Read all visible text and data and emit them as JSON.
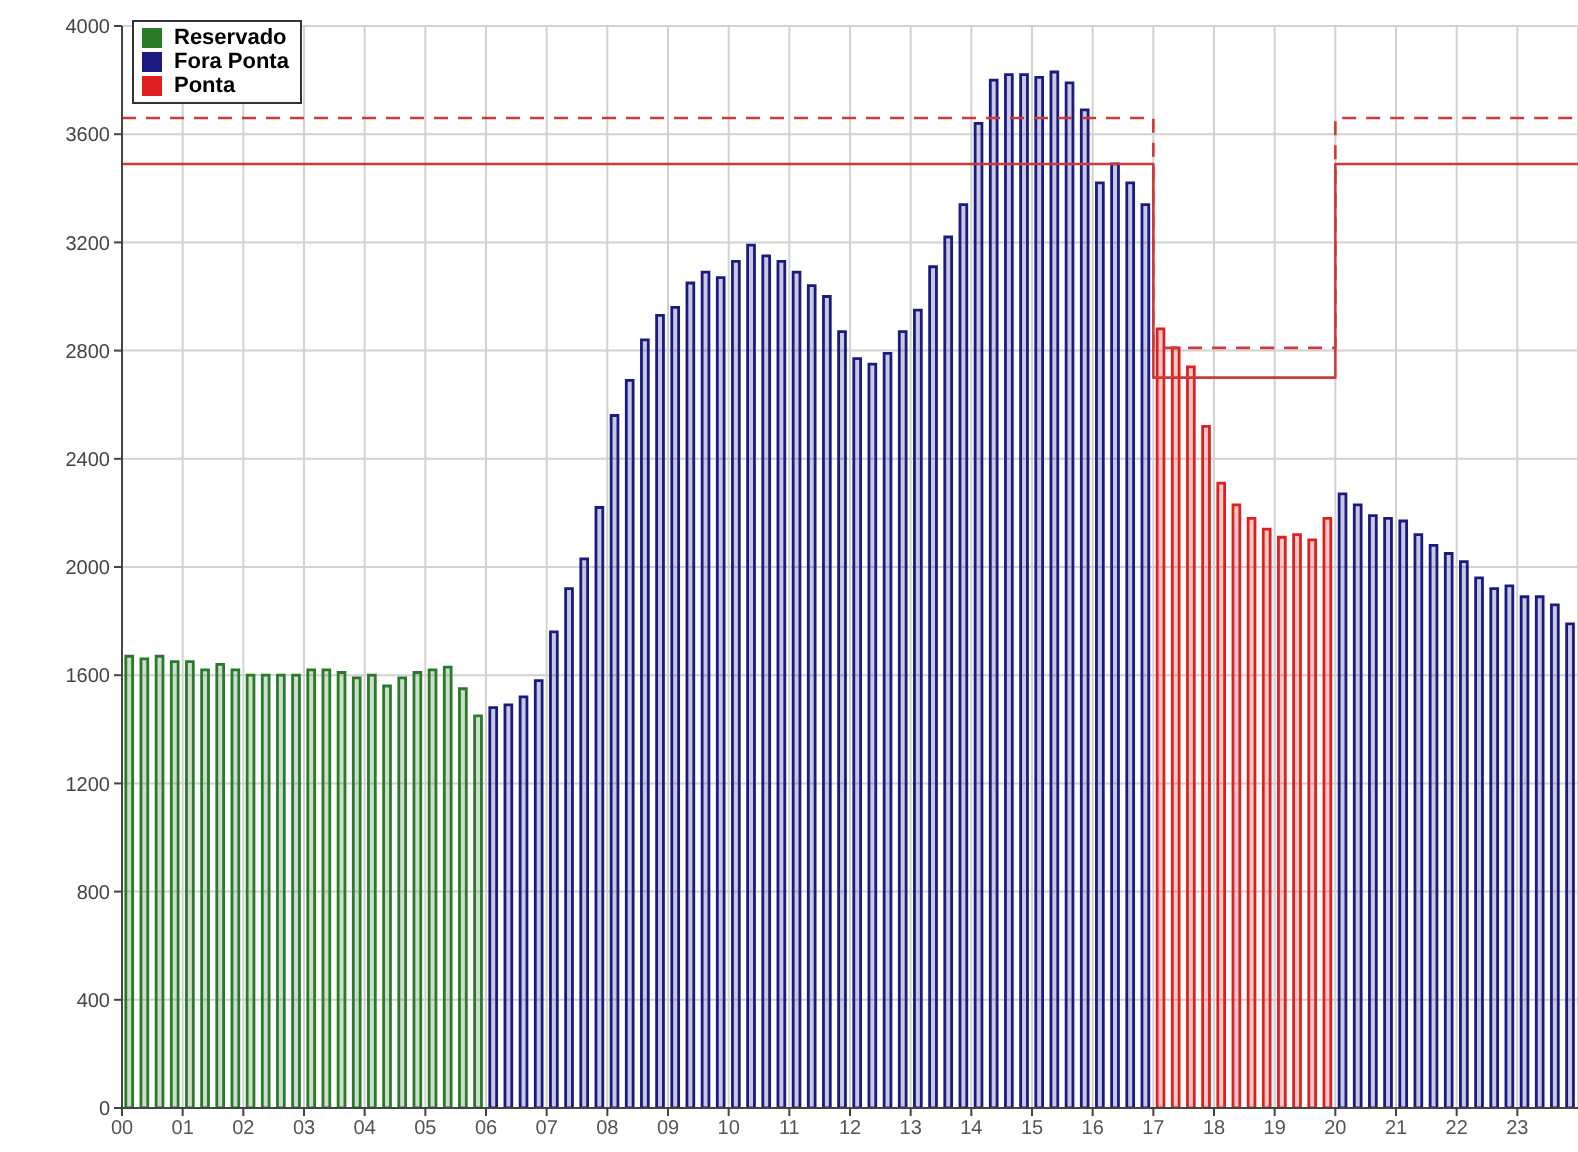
{
  "chart_data": {
    "type": "bar",
    "xlim": [
      0,
      24
    ],
    "xticks": [
      {
        "value": 0,
        "label": "00"
      },
      {
        "value": 1,
        "label": "01"
      },
      {
        "value": 2,
        "label": "02"
      },
      {
        "value": 3,
        "label": "03"
      },
      {
        "value": 4,
        "label": "04"
      },
      {
        "value": 5,
        "label": "05"
      },
      {
        "value": 6,
        "label": "06"
      },
      {
        "value": 7,
        "label": "07"
      },
      {
        "value": 8,
        "label": "08"
      },
      {
        "value": 9,
        "label": "09"
      },
      {
        "value": 10,
        "label": "10"
      },
      {
        "value": 11,
        "label": "11"
      },
      {
        "value": 12,
        "label": "12"
      },
      {
        "value": 13,
        "label": "13"
      },
      {
        "value": 14,
        "label": "14"
      },
      {
        "value": 15,
        "label": "15"
      },
      {
        "value": 16,
        "label": "16"
      },
      {
        "value": 17,
        "label": "17"
      },
      {
        "value": 18,
        "label": "18"
      },
      {
        "value": 19,
        "label": "19"
      },
      {
        "value": 20,
        "label": "20"
      },
      {
        "value": 21,
        "label": "21"
      },
      {
        "value": 22,
        "label": "22"
      },
      {
        "value": 23,
        "label": "23"
      }
    ],
    "ylim": [
      0,
      4000
    ],
    "yticks": [
      0,
      400,
      800,
      1200,
      1600,
      2000,
      2400,
      2800,
      3200,
      3600,
      4000
    ],
    "grid": true,
    "legend": "top left",
    "series": [
      {
        "name": "Reservado",
        "color": "#2a7a2a",
        "x": [
          0.125,
          0.375,
          0.625,
          0.875,
          1.125,
          1.375,
          1.625,
          1.875,
          2.125,
          2.375,
          2.625,
          2.875,
          3.125,
          3.375,
          3.625,
          3.875,
          4.125,
          4.375,
          4.625,
          4.875,
          5.125,
          5.375,
          5.625,
          5.875
        ],
        "values": [
          1670,
          1660,
          1670,
          1650,
          1650,
          1620,
          1640,
          1620,
          1600,
          1600,
          1600,
          1600,
          1620,
          1620,
          1610,
          1590,
          1600,
          1560,
          1590,
          1610,
          1620,
          1630,
          1550,
          1450
        ]
      },
      {
        "name": "Fora Ponta",
        "color": "#1a1a80",
        "x": [
          6.125,
          6.375,
          6.625,
          6.875,
          7.125,
          7.375,
          7.625,
          7.875,
          8.125,
          8.375,
          8.625,
          8.875,
          9.125,
          9.375,
          9.625,
          9.875,
          10.125,
          10.375,
          10.625,
          10.875,
          11.125,
          11.375,
          11.625,
          11.875,
          12.125,
          12.375,
          12.625,
          12.875,
          13.125,
          13.375,
          13.625,
          13.875,
          14.125,
          14.375,
          14.625,
          14.875,
          15.125,
          15.375,
          15.625,
          15.875,
          16.125,
          16.375,
          16.625,
          16.875,
          20.125,
          20.375,
          20.625,
          20.875,
          21.125,
          21.375,
          21.625,
          21.875,
          22.125,
          22.375,
          22.625,
          22.875,
          23.125,
          23.375,
          23.625,
          23.875
        ],
        "values": [
          1480,
          1490,
          1520,
          1580,
          1760,
          1920,
          2030,
          2220,
          2560,
          2690,
          2840,
          2930,
          2960,
          3050,
          3090,
          3070,
          3130,
          3190,
          3150,
          3130,
          3090,
          3040,
          3000,
          2870,
          2770,
          2750,
          2790,
          2870,
          2950,
          3110,
          3220,
          3340,
          3640,
          3800,
          3820,
          3820,
          3810,
          3830,
          3790,
          3690,
          3420,
          3490,
          3420,
          3340,
          2270,
          2230,
          2190,
          2180,
          2170,
          2120,
          2080,
          2050,
          2020,
          1960,
          1920,
          1930,
          1890,
          1890,
          1860,
          1790
        ]
      },
      {
        "name": "Ponta",
        "color": "#e02020",
        "x": [
          17.125,
          17.375,
          17.625,
          17.875,
          18.125,
          18.375,
          18.625,
          18.875,
          19.125,
          19.375,
          19.625,
          19.875
        ],
        "values": [
          2880,
          2810,
          2740,
          2520,
          2310,
          2230,
          2180,
          2140,
          2110,
          2120,
          2100,
          2180
        ]
      },
      {
        "type": "step",
        "color": "#cc3a3a",
        "line_style": "solid",
        "x": [
          0,
          17,
          20,
          24
        ],
        "values": [
          3490,
          2700,
          3490,
          3490
        ]
      },
      {
        "type": "step",
        "color": "#cc3a3a",
        "line_style": "dashed",
        "x": [
          0,
          17,
          20,
          24
        ],
        "values": [
          3660,
          2810,
          3660,
          3660
        ]
      }
    ]
  }
}
